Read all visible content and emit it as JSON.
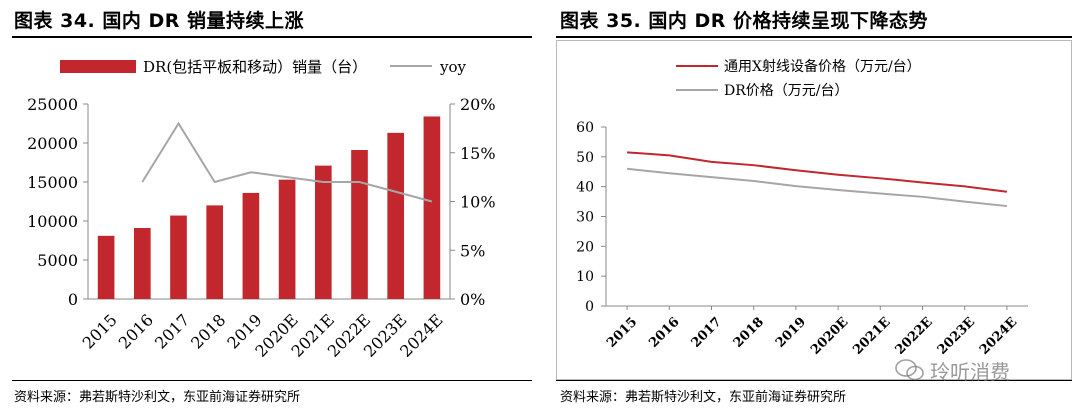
{
  "left": {
    "title": "图表 34. 国内 DR 销量持续上涨",
    "source": "资料来源：弗若斯特沙利文，东亚前海证券研究所"
  },
  "right": {
    "title": "图表 35. 国内 DR 价格持续呈现下降态势",
    "source": "资料来源：弗若斯特沙利文，东亚前海证券研究所"
  },
  "watermark": "玲听消费",
  "colors": {
    "red": "#c1272d",
    "gray": "#a6a6a6",
    "axis": "#888888"
  },
  "chart_data": [
    {
      "type": "bar",
      "title": "国内 DR 销量持续上涨",
      "categories": [
        "2015",
        "2016",
        "2017",
        "2018",
        "2019",
        "2020E",
        "2021E",
        "2022E",
        "2023E",
        "2024E"
      ],
      "series": [
        {
          "name": "DR(包括平板和移动）销量（台）",
          "type": "bar",
          "axis": "left",
          "values": [
            8100,
            9100,
            10700,
            12000,
            13600,
            15300,
            17100,
            19100,
            21300,
            23400
          ]
        },
        {
          "name": "yoy",
          "type": "line",
          "axis": "right",
          "values": [
            null,
            12,
            18,
            12,
            13,
            12.5,
            12,
            12,
            11,
            10
          ]
        }
      ],
      "ylim_left": [
        0,
        25000
      ],
      "yticks_left": [
        "0",
        "5000",
        "10000",
        "15000",
        "20000",
        "25000"
      ],
      "ylim_right": [
        0,
        20
      ],
      "yticks_right": [
        "0%",
        "5%",
        "10%",
        "15%",
        "20%"
      ],
      "legend_position": "top"
    },
    {
      "type": "line",
      "title": "国内 DR 价格持续呈现下降态势",
      "categories": [
        "2015",
        "2016",
        "2017",
        "2018",
        "2019",
        "2020E",
        "2021E",
        "2022E",
        "2023E",
        "2024E"
      ],
      "series": [
        {
          "name": "通用X射线设备价格（万元/台）",
          "values": [
            51.5,
            50.5,
            48.3,
            47.2,
            45.5,
            44.0,
            42.8,
            41.4,
            40.1,
            38.3
          ]
        },
        {
          "name": "DR价格（万元/台）",
          "values": [
            46.0,
            44.5,
            43.2,
            41.9,
            40.2,
            38.9,
            37.7,
            36.6,
            35.0,
            33.5
          ]
        }
      ],
      "ylim": [
        0,
        60
      ],
      "yticks": [
        "0",
        "10",
        "20",
        "30",
        "40",
        "50",
        "60"
      ],
      "legend_position": "top"
    }
  ]
}
